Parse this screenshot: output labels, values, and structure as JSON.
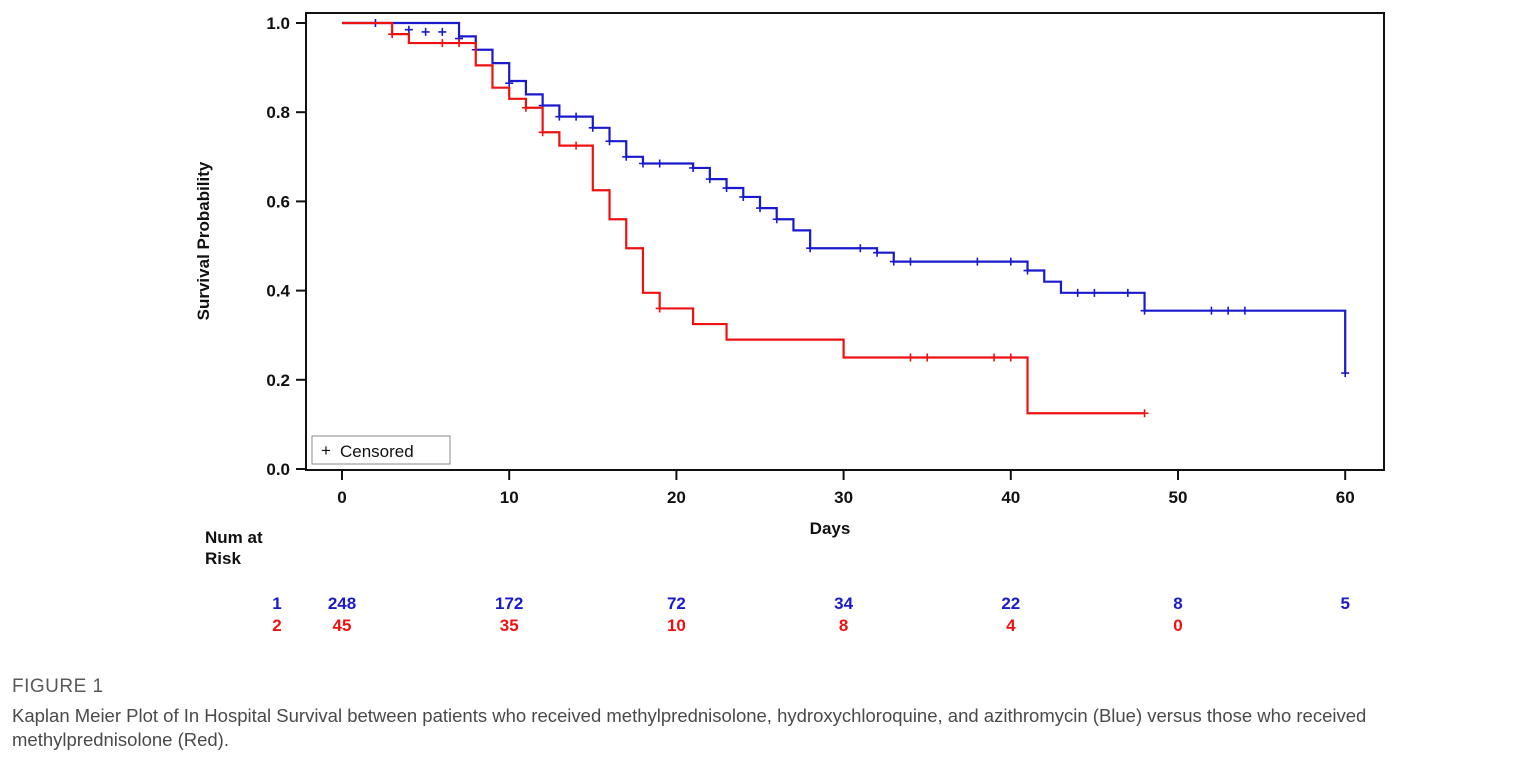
{
  "figure": {
    "label": "FIGURE 1",
    "caption": "Kaplan Meier Plot of In Hospital Survival between patients who received methylprednisolone, hydroxychloroquine, and azithromycin (Blue) versus those who received methylprednisolone (Red)."
  },
  "colors": {
    "group1": "#1a1acc",
    "group2": "#ee1111",
    "axis": "#111111"
  },
  "chart_data": {
    "type": "line",
    "title": "",
    "xlabel": "Days",
    "ylabel": "Survival Probability",
    "xlim": [
      -2,
      62
    ],
    "ylim": [
      0.0,
      1.02
    ],
    "x_ticks": [
      0,
      10,
      20,
      30,
      40,
      50,
      60
    ],
    "y_ticks": [
      0.0,
      0.2,
      0.4,
      0.6,
      0.8,
      1.0
    ],
    "y_tick_labels": [
      "0.0",
      "0.2",
      "0.4",
      "0.6",
      "0.8",
      "1.0"
    ],
    "legend": {
      "entries": [
        "Censored"
      ],
      "symbol": "+",
      "placement": "bottom-left"
    },
    "series": [
      {
        "group": "1",
        "color": "#1a1acc",
        "steps": [
          [
            0,
            1.0
          ],
          [
            7,
            0.97
          ],
          [
            8,
            0.94
          ],
          [
            9,
            0.91
          ],
          [
            10,
            0.87
          ],
          [
            11,
            0.84
          ],
          [
            12,
            0.815
          ],
          [
            13,
            0.79
          ],
          [
            15,
            0.765
          ],
          [
            16,
            0.735
          ],
          [
            17,
            0.7
          ],
          [
            18,
            0.685
          ],
          [
            21,
            0.675
          ],
          [
            22,
            0.65
          ],
          [
            23,
            0.63
          ],
          [
            24,
            0.61
          ],
          [
            25,
            0.585
          ],
          [
            26,
            0.56
          ],
          [
            27,
            0.535
          ],
          [
            28,
            0.495
          ],
          [
            32,
            0.485
          ],
          [
            33,
            0.465
          ],
          [
            41,
            0.445
          ],
          [
            42,
            0.42
          ],
          [
            43,
            0.395
          ],
          [
            48,
            0.355
          ],
          [
            60,
            0.215
          ]
        ],
        "end_x": 60,
        "censored": [
          [
            2,
            1.0
          ],
          [
            4,
            0.985
          ],
          [
            5,
            0.98
          ],
          [
            6,
            0.98
          ],
          [
            7,
            0.965
          ],
          [
            8,
            0.94
          ],
          [
            10,
            0.865
          ],
          [
            12,
            0.815
          ],
          [
            13,
            0.79
          ],
          [
            14,
            0.79
          ],
          [
            15,
            0.765
          ],
          [
            16,
            0.735
          ],
          [
            17,
            0.7
          ],
          [
            18,
            0.685
          ],
          [
            19,
            0.685
          ],
          [
            21,
            0.675
          ],
          [
            22,
            0.65
          ],
          [
            23,
            0.63
          ],
          [
            24,
            0.61
          ],
          [
            25,
            0.585
          ],
          [
            26,
            0.56
          ],
          [
            28,
            0.495
          ],
          [
            31,
            0.495
          ],
          [
            32,
            0.485
          ],
          [
            33,
            0.465
          ],
          [
            34,
            0.465
          ],
          [
            38,
            0.465
          ],
          [
            40,
            0.465
          ],
          [
            41,
            0.445
          ],
          [
            44,
            0.395
          ],
          [
            45,
            0.395
          ],
          [
            47,
            0.395
          ],
          [
            48,
            0.355
          ],
          [
            52,
            0.355
          ],
          [
            53,
            0.355
          ],
          [
            54,
            0.355
          ],
          [
            60,
            0.215
          ]
        ]
      },
      {
        "group": "2",
        "color": "#ee1111",
        "steps": [
          [
            0,
            1.0
          ],
          [
            3,
            0.975
          ],
          [
            4,
            0.955
          ],
          [
            8,
            0.905
          ],
          [
            9,
            0.855
          ],
          [
            10,
            0.83
          ],
          [
            11,
            0.81
          ],
          [
            12,
            0.755
          ],
          [
            13,
            0.725
          ],
          [
            15,
            0.625
          ],
          [
            16,
            0.56
          ],
          [
            17,
            0.495
          ],
          [
            18,
            0.395
          ],
          [
            19,
            0.36
          ],
          [
            21,
            0.325
          ],
          [
            23,
            0.29
          ],
          [
            30,
            0.25
          ],
          [
            41,
            0.125
          ]
        ],
        "end_x": 48,
        "censored": [
          [
            3,
            0.975
          ],
          [
            6,
            0.955
          ],
          [
            7,
            0.955
          ],
          [
            11,
            0.81
          ],
          [
            12,
            0.755
          ],
          [
            14,
            0.725
          ],
          [
            19,
            0.36
          ],
          [
            34,
            0.25
          ],
          [
            35,
            0.25
          ],
          [
            39,
            0.25
          ],
          [
            40,
            0.25
          ],
          [
            48,
            0.125
          ]
        ]
      }
    ],
    "risk_table": {
      "title_line1": "Num at",
      "title_line2": "Risk",
      "times": [
        0,
        10,
        20,
        30,
        40,
        50,
        60
      ],
      "rows": [
        {
          "label": "1",
          "color": "#1a1acc",
          "counts": [
            "248",
            "172",
            "72",
            "34",
            "22",
            "8",
            "5"
          ]
        },
        {
          "label": "2",
          "color": "#ee1111",
          "counts": [
            "45",
            "35",
            "10",
            "8",
            "4",
            "0",
            ""
          ]
        }
      ]
    }
  }
}
